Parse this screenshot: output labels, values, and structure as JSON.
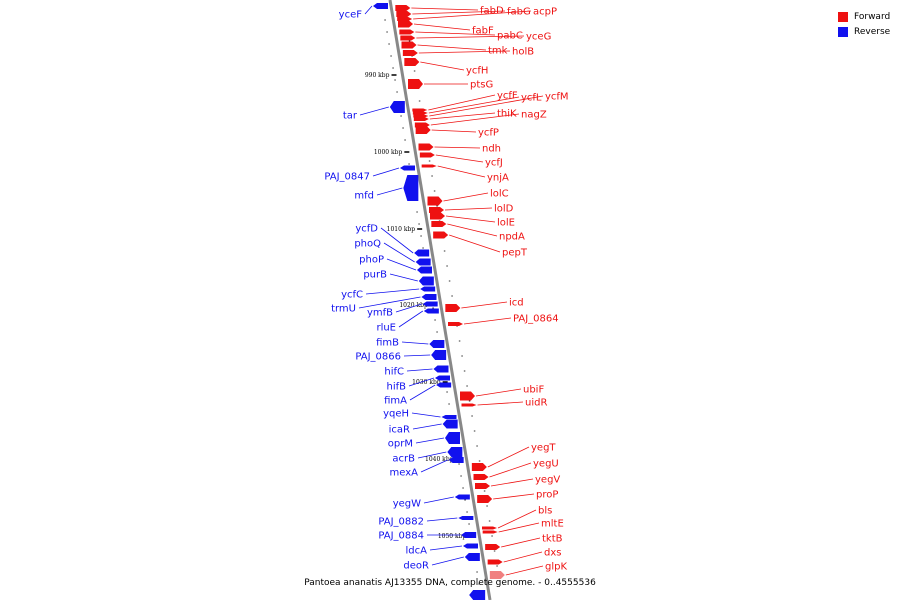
{
  "legend": [
    {
      "label": "Forward",
      "color": "#ee1111"
    },
    {
      "label": "Reverse",
      "color": "#1111ee"
    }
  ],
  "caption": "Pantoea ananatis AJ13355 DNA, complete genome. - 0..4555536",
  "colors": {
    "forward": "#ee1111",
    "reverse": "#1111ee",
    "backbone": "#888888",
    "highlight": "#f08080"
  },
  "kbp_ticks": [
    "990 kbp",
    "1000 kbp",
    "1010 kbp",
    "1020 kbp",
    "1030 kbp",
    "1040 kbp",
    "1050 kbp"
  ],
  "forward_genes": [
    "fabD",
    "fabG",
    "acpP",
    "fabF",
    "pabC",
    "yceG",
    "tmk",
    "holB",
    "ycfH",
    "ptsG",
    "ycfF",
    "ycfL",
    "ycfM",
    "thiK",
    "nagZ",
    "ycfP",
    "ndh",
    "ycfJ",
    "ynjA",
    "lolC",
    "lolD",
    "lolE",
    "npdA",
    "pepT",
    "icd",
    "PAJ_0864",
    "ubiF",
    "uidR",
    "yegT",
    "yegU",
    "yegV",
    "proP",
    "bls",
    "mltE",
    "tktB",
    "dxs",
    "glpK"
  ],
  "reverse_genes": [
    "yceF",
    "tar",
    "PAJ_0847",
    "mfd",
    "ycfD",
    "phoQ",
    "phoP",
    "purB",
    "ycfC",
    "trmU",
    "ymfB",
    "rluE",
    "fimB",
    "PAJ_0866",
    "hifC",
    "hifB",
    "fimA",
    "yqeH",
    "icaR",
    "oprM",
    "acrB",
    "mexA",
    "yegW",
    "PAJ_0882",
    "PAJ_0884",
    "ldcA",
    "deoR"
  ]
}
